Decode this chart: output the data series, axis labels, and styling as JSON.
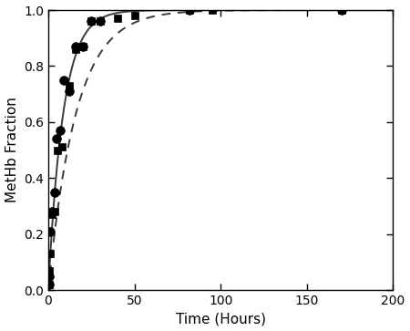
{
  "title": "",
  "xlabel": "Time (Hours)",
  "ylabel": "MetHb Fraction",
  "xlim": [
    0,
    200
  ],
  "ylim": [
    0.0,
    1.0
  ],
  "xticks": [
    0,
    50,
    100,
    150,
    200
  ],
  "yticks": [
    0.0,
    0.2,
    0.4,
    0.6,
    0.8,
    1.0
  ],
  "circle_data_x": [
    0.3,
    0.7,
    1.2,
    2.0,
    3.5,
    5.0,
    7.0,
    9.0,
    12.0,
    16.0,
    20.0,
    25.0,
    30.0,
    82.0,
    170.0
  ],
  "circle_data_y": [
    0.02,
    0.05,
    0.21,
    0.28,
    0.35,
    0.54,
    0.57,
    0.75,
    0.71,
    0.87,
    0.87,
    0.96,
    0.96,
    1.0,
    1.0
  ],
  "square_data_x": [
    0.3,
    0.7,
    1.2,
    2.0,
    3.5,
    5.5,
    8.0,
    12.0,
    16.0,
    20.0,
    25.0,
    30.0,
    40.0,
    50.0,
    82.0,
    95.0,
    170.0
  ],
  "square_data_y": [
    0.02,
    0.07,
    0.13,
    0.27,
    0.28,
    0.5,
    0.51,
    0.73,
    0.86,
    0.87,
    0.96,
    0.96,
    0.97,
    0.98,
    1.0,
    1.0,
    1.0
  ],
  "circle_k": 0.115,
  "square_k": 0.062,
  "marker_color": "#000000",
  "curve_color": "#3a3a3a",
  "circle_marker_size": 7,
  "square_marker_size": 5.5,
  "line_width": 1.4,
  "figsize": [
    4.5,
    3.63
  ],
  "dpi": 100
}
